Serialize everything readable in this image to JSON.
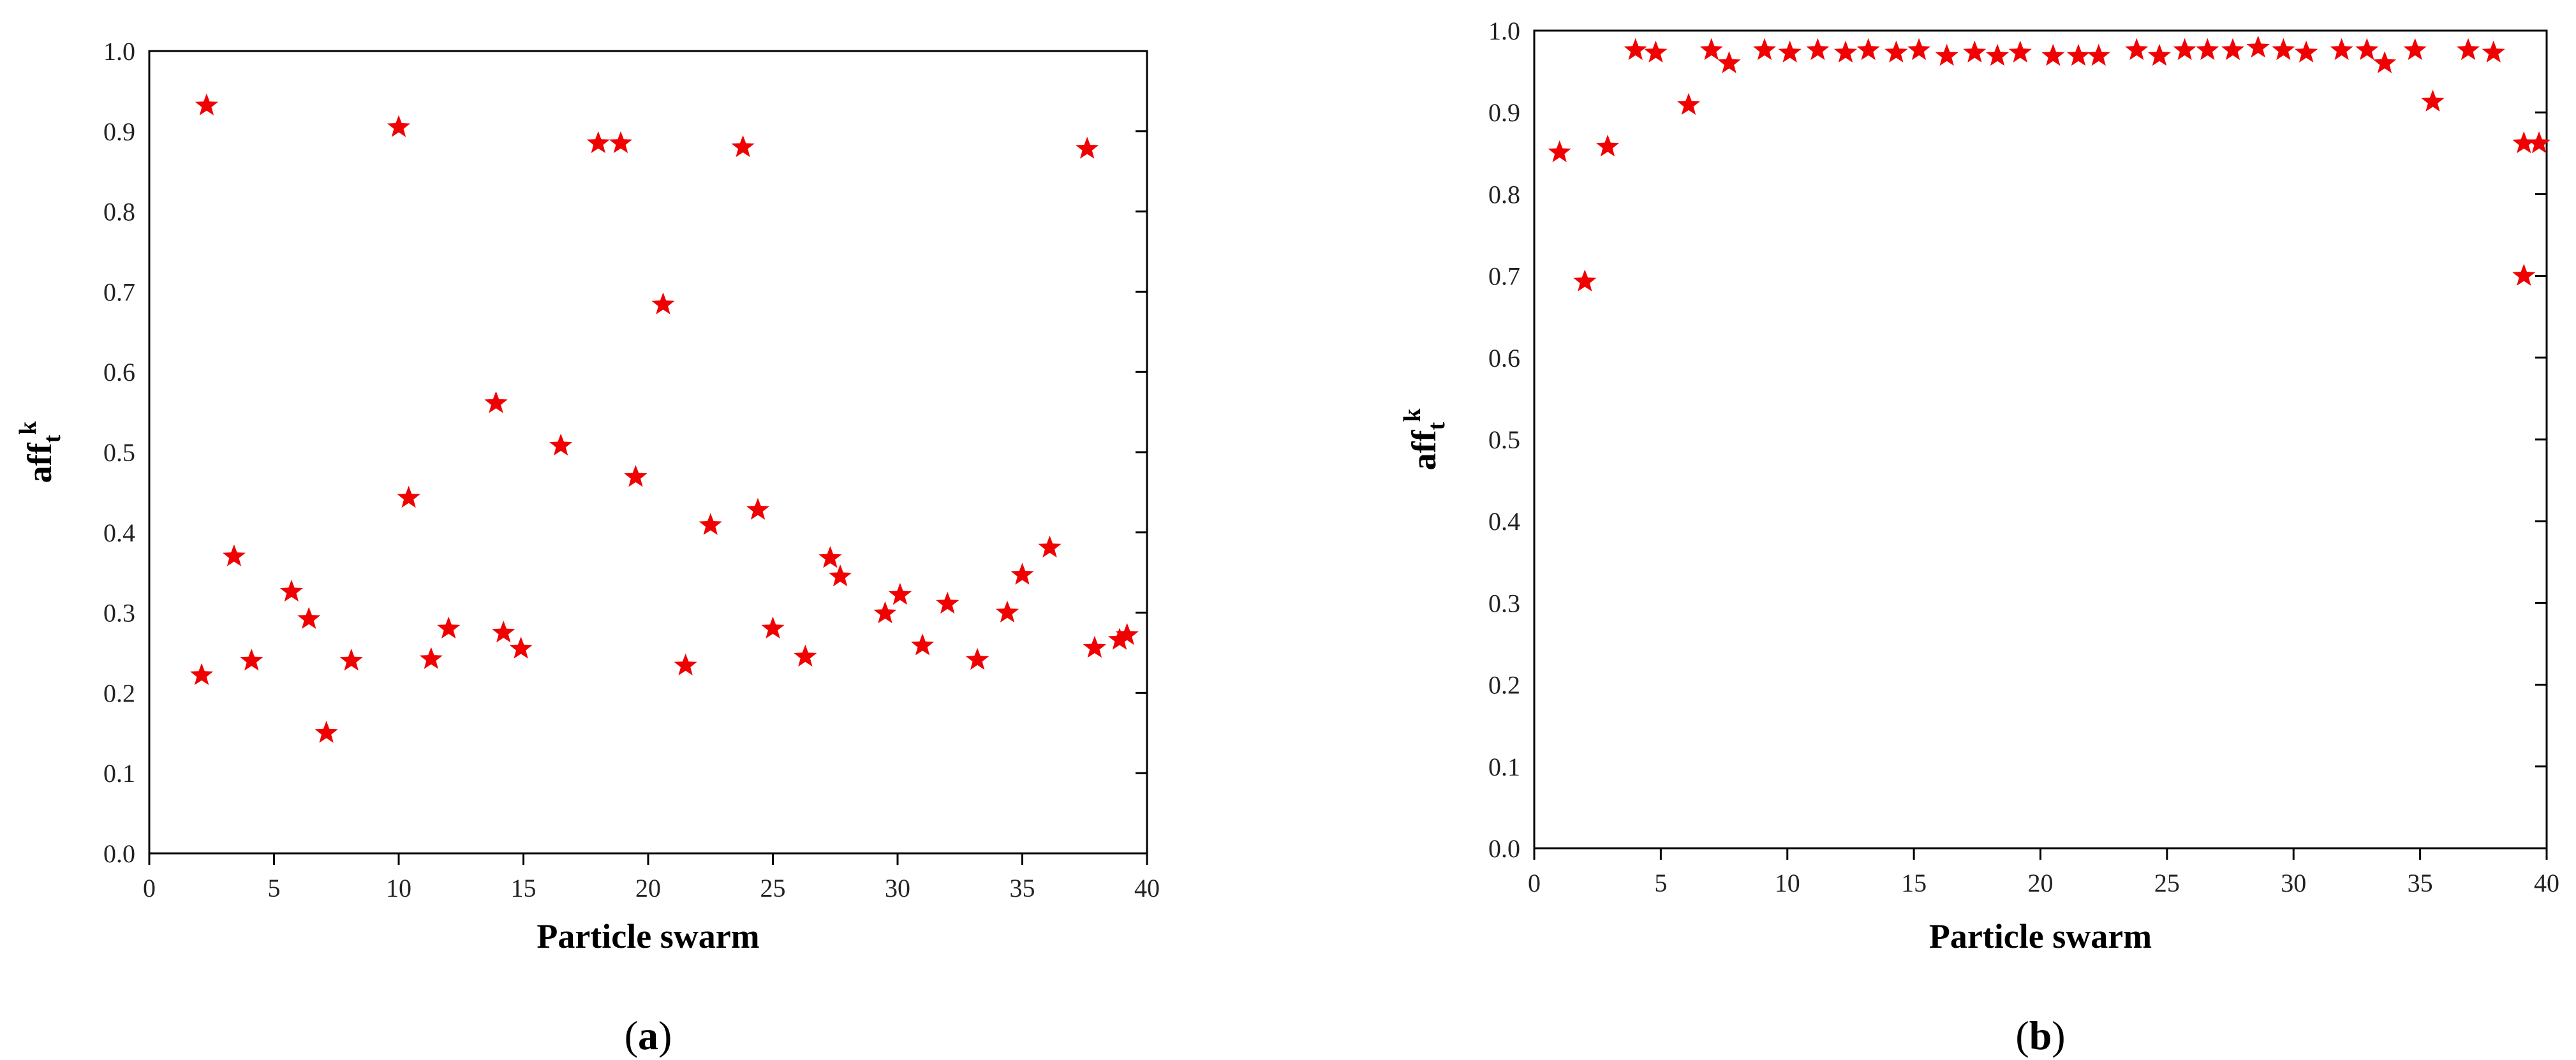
{
  "star_color": "#f00000",
  "chart_data": [
    {
      "type": "scatter",
      "panel_label": "a",
      "xlabel": "Particle swarm",
      "ylabel": {
        "main": "aff",
        "subscript": "t",
        "superscript": "k"
      },
      "xlim": [
        0,
        40
      ],
      "ylim": [
        0.0,
        1.0
      ],
      "x_ticks": [
        "0",
        "5",
        "10",
        "15",
        "20",
        "25",
        "30",
        "35",
        "40"
      ],
      "y_ticks": [
        "0.0",
        "0.1",
        "0.2",
        "0.3",
        "0.4",
        "0.5",
        "0.6",
        "0.7",
        "0.8",
        "0.9",
        "1.0"
      ],
      "marker": "star",
      "grid": false,
      "legend": "none",
      "series": [
        {
          "points": [
            [
              2.1,
              0.222
            ],
            [
              2.3,
              0.932
            ],
            [
              3.4,
              0.37
            ],
            [
              4.1,
              0.24
            ],
            [
              5.7,
              0.326
            ],
            [
              6.4,
              0.292
            ],
            [
              7.1,
              0.15
            ],
            [
              8.1,
              0.24
            ],
            [
              10.0,
              0.905
            ],
            [
              10.4,
              0.443
            ],
            [
              11.3,
              0.242
            ],
            [
              12.0,
              0.28
            ],
            [
              13.9,
              0.561
            ],
            [
              14.2,
              0.275
            ],
            [
              14.9,
              0.255
            ],
            [
              16.5,
              0.508
            ],
            [
              18.0,
              0.885
            ],
            [
              18.9,
              0.885
            ],
            [
              19.5,
              0.469
            ],
            [
              20.6,
              0.684
            ],
            [
              21.5,
              0.234
            ],
            [
              22.5,
              0.409
            ],
            [
              23.8,
              0.88
            ],
            [
              24.4,
              0.428
            ],
            [
              25.0,
              0.28
            ],
            [
              26.3,
              0.245
            ],
            [
              27.3,
              0.368
            ],
            [
              27.7,
              0.345
            ],
            [
              29.5,
              0.299
            ],
            [
              30.1,
              0.322
            ],
            [
              31.0,
              0.259
            ],
            [
              32.0,
              0.311
            ],
            [
              33.2,
              0.241
            ],
            [
              34.4,
              0.3
            ],
            [
              35.0,
              0.347
            ],
            [
              36.1,
              0.381
            ],
            [
              37.6,
              0.878
            ],
            [
              37.9,
              0.256
            ],
            [
              38.9,
              0.266
            ],
            [
              39.2,
              0.272
            ]
          ]
        }
      ]
    },
    {
      "type": "scatter",
      "panel_label": "b",
      "xlabel": "Particle swarm",
      "ylabel": {
        "main": "aff",
        "subscript": "t",
        "superscript": "k"
      },
      "xlim": [
        0,
        40
      ],
      "ylim": [
        0.0,
        1.0
      ],
      "x_ticks": [
        "0",
        "5",
        "10",
        "15",
        "20",
        "25",
        "30",
        "35",
        "40"
      ],
      "y_ticks": [
        "0.0",
        "0.1",
        "0.2",
        "0.3",
        "0.4",
        "0.5",
        "0.6",
        "0.7",
        "0.8",
        "0.9",
        "1.0"
      ],
      "marker": "star",
      "grid": false,
      "legend": "none",
      "series": [
        {
          "points": [
            [
              1.0,
              0.851
            ],
            [
              2.0,
              0.693
            ],
            [
              2.9,
              0.858
            ],
            [
              4.0,
              0.976
            ],
            [
              4.8,
              0.973
            ],
            [
              6.1,
              0.909
            ],
            [
              7.0,
              0.976
            ],
            [
              7.7,
              0.96
            ],
            [
              9.1,
              0.976
            ],
            [
              10.1,
              0.973
            ],
            [
              11.2,
              0.976
            ],
            [
              12.3,
              0.973
            ],
            [
              13.2,
              0.976
            ],
            [
              14.3,
              0.973
            ],
            [
              15.2,
              0.976
            ],
            [
              16.3,
              0.969
            ],
            [
              17.4,
              0.973
            ],
            [
              18.3,
              0.969
            ],
            [
              19.2,
              0.973
            ],
            [
              20.5,
              0.969
            ],
            [
              21.5,
              0.969
            ],
            [
              22.3,
              0.969
            ],
            [
              23.8,
              0.976
            ],
            [
              24.7,
              0.969
            ],
            [
              25.7,
              0.976
            ],
            [
              26.6,
              0.976
            ],
            [
              27.6,
              0.976
            ],
            [
              28.6,
              0.979
            ],
            [
              29.6,
              0.976
            ],
            [
              30.5,
              0.973
            ],
            [
              31.9,
              0.976
            ],
            [
              32.9,
              0.976
            ],
            [
              33.6,
              0.96
            ],
            [
              34.8,
              0.976
            ],
            [
              35.5,
              0.913
            ],
            [
              36.9,
              0.976
            ],
            [
              37.9,
              0.973
            ],
            [
              39.1,
              0.862
            ],
            [
              39.1,
              0.7
            ],
            [
              39.7,
              0.862
            ]
          ]
        }
      ]
    }
  ]
}
